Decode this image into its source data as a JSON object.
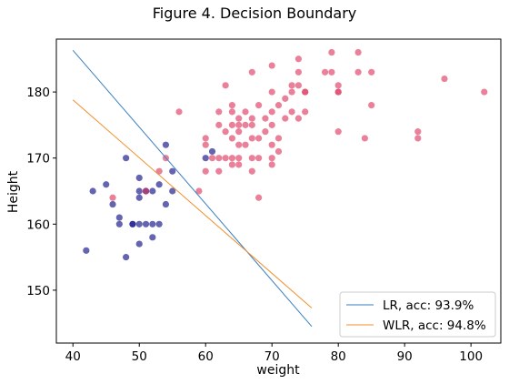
{
  "chart_data": {
    "type": "scatter",
    "title": "Figure 4. Decision Boundary",
    "xlabel": "weight",
    "ylabel": "Height",
    "xlim": [
      37.5,
      104.5
    ],
    "ylim": [
      142,
      188
    ],
    "xticks": [
      40,
      50,
      60,
      70,
      80,
      90,
      100
    ],
    "yticks": [
      150,
      160,
      170,
      180
    ],
    "grid": false,
    "legend_position": "lower-right",
    "series": [
      {
        "color": "#1a1a8c",
        "points": [
          [
            42,
            156
          ],
          [
            43,
            165
          ],
          [
            45,
            166
          ],
          [
            46,
            163
          ],
          [
            47,
            160
          ],
          [
            47,
            161
          ],
          [
            48,
            155
          ],
          [
            48,
            170
          ],
          [
            49,
            160
          ],
          [
            49,
            160
          ],
          [
            50,
            157
          ],
          [
            50,
            160
          ],
          [
            50,
            164
          ],
          [
            50,
            165
          ],
          [
            50,
            167
          ],
          [
            51,
            160
          ],
          [
            51,
            165
          ],
          [
            52,
            158
          ],
          [
            52,
            160
          ],
          [
            52,
            165
          ],
          [
            53,
            160
          ],
          [
            53,
            166
          ],
          [
            54,
            163
          ],
          [
            54,
            172
          ],
          [
            55,
            165
          ],
          [
            55,
            168
          ],
          [
            60,
            170
          ],
          [
            61,
            171
          ],
          [
            51,
            165
          ]
        ]
      },
      {
        "color": "#e0456a",
        "points": [
          [
            46,
            164
          ],
          [
            51,
            165
          ],
          [
            53,
            168
          ],
          [
            54,
            170
          ],
          [
            56,
            177
          ],
          [
            59,
            165
          ],
          [
            60,
            168
          ],
          [
            60,
            172
          ],
          [
            60,
            173
          ],
          [
            61,
            170
          ],
          [
            62,
            168
          ],
          [
            62,
            170
          ],
          [
            62,
            175
          ],
          [
            62,
            177
          ],
          [
            63,
            170
          ],
          [
            63,
            174
          ],
          [
            63,
            181
          ],
          [
            64,
            169
          ],
          [
            64,
            170
          ],
          [
            64,
            173
          ],
          [
            64,
            175
          ],
          [
            64,
            177
          ],
          [
            64,
            178
          ],
          [
            65,
            169
          ],
          [
            65,
            170
          ],
          [
            65,
            172
          ],
          [
            65,
            174
          ],
          [
            65,
            175
          ],
          [
            65,
            176
          ],
          [
            66,
            172
          ],
          [
            66,
            175
          ],
          [
            66,
            177
          ],
          [
            67,
            168
          ],
          [
            67,
            170
          ],
          [
            67,
            173
          ],
          [
            67,
            175
          ],
          [
            67,
            176
          ],
          [
            67,
            183
          ],
          [
            68,
            164
          ],
          [
            68,
            170
          ],
          [
            68,
            173
          ],
          [
            68,
            178
          ],
          [
            69,
            174
          ],
          [
            69,
            176
          ],
          [
            70,
            169
          ],
          [
            70,
            170
          ],
          [
            70,
            172
          ],
          [
            70,
            175
          ],
          [
            70,
            177
          ],
          [
            70,
            180
          ],
          [
            70,
            184
          ],
          [
            71,
            171
          ],
          [
            71,
            173
          ],
          [
            71,
            178
          ],
          [
            72,
            176
          ],
          [
            72,
            179
          ],
          [
            73,
            177
          ],
          [
            73,
            180
          ],
          [
            73,
            181
          ],
          [
            74,
            176
          ],
          [
            74,
            181
          ],
          [
            74,
            183
          ],
          [
            74,
            185
          ],
          [
            75,
            177
          ],
          [
            75,
            180
          ],
          [
            75,
            180
          ],
          [
            78,
            183
          ],
          [
            79,
            183
          ],
          [
            79,
            186
          ],
          [
            80,
            174
          ],
          [
            80,
            180
          ],
          [
            80,
            180
          ],
          [
            80,
            181
          ],
          [
            83,
            183
          ],
          [
            83,
            186
          ],
          [
            84,
            173
          ],
          [
            85,
            178
          ],
          [
            85,
            183
          ],
          [
            92,
            173
          ],
          [
            92,
            174
          ],
          [
            96,
            182
          ],
          [
            102,
            180
          ]
        ]
      }
    ],
    "lines": [
      {
        "name": "LR, acc: 93.9%",
        "color": "#3a7fc1",
        "x": [
          40,
          76
        ],
        "y": [
          186.3,
          144.5
        ]
      },
      {
        "name": "WLR, acc: 94.8%",
        "color": "#ef8f2b",
        "x": [
          40,
          76
        ],
        "y": [
          178.8,
          147.3
        ]
      }
    ]
  }
}
